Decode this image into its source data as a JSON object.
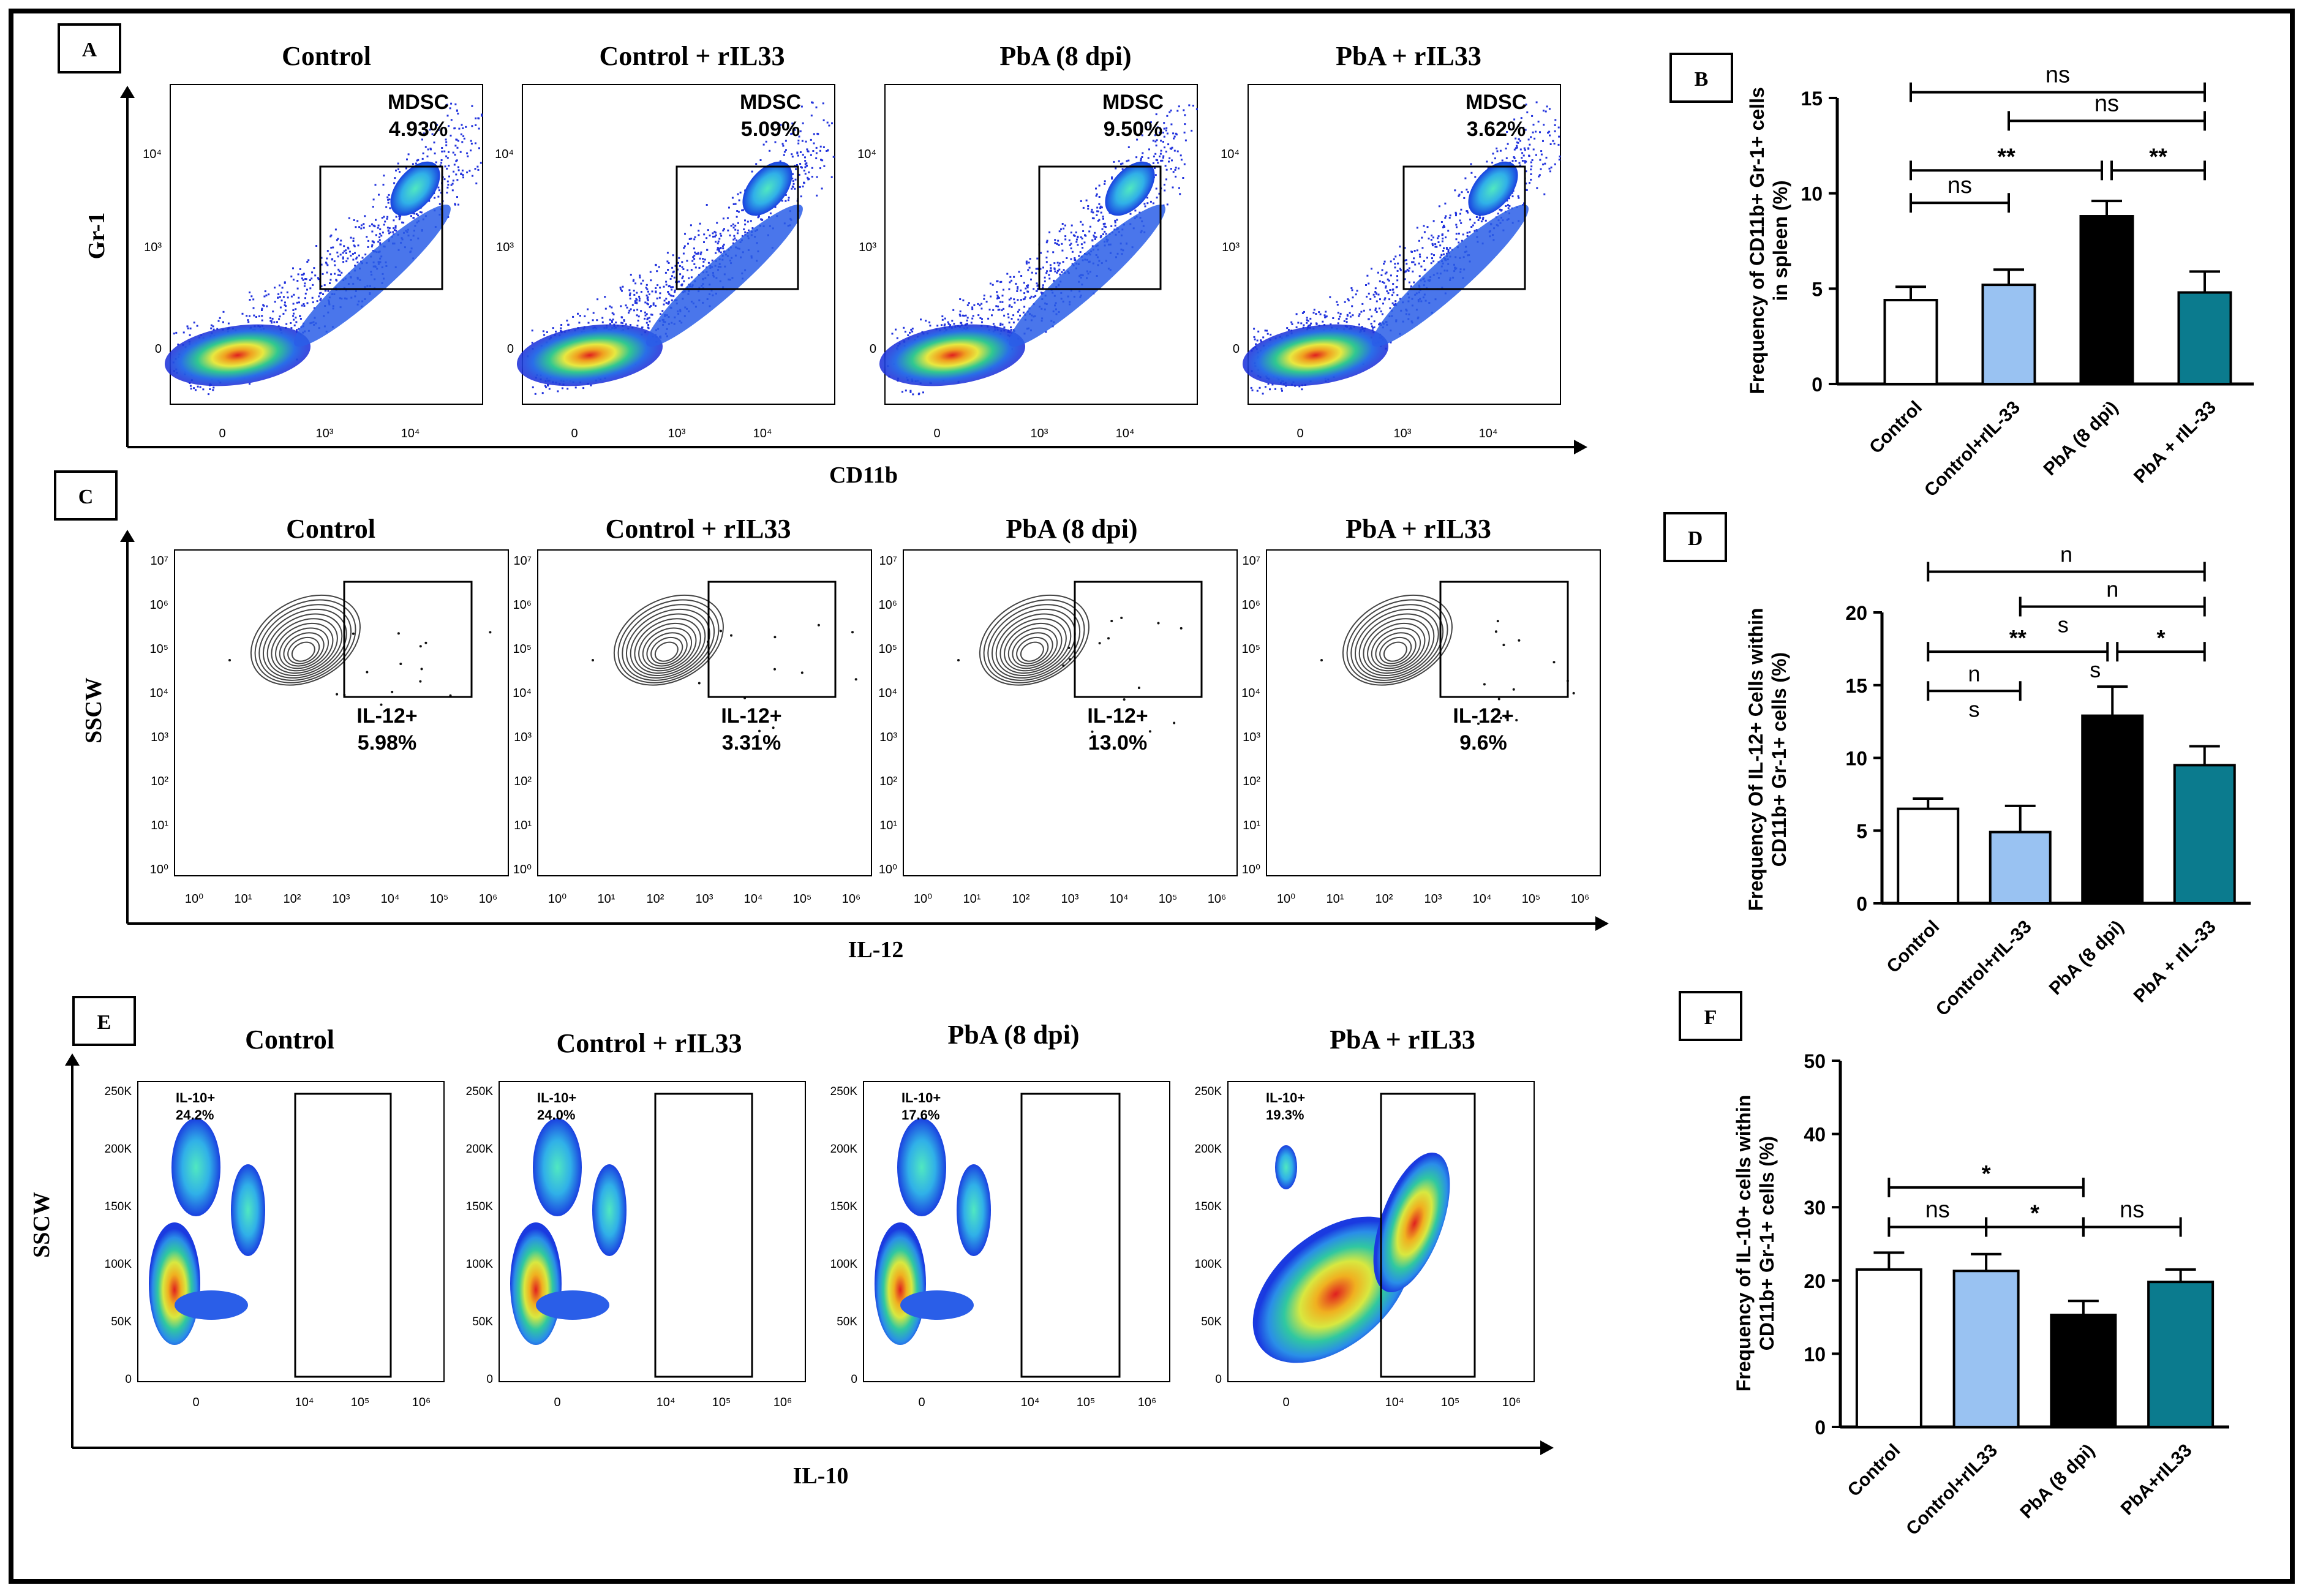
{
  "panels": {
    "A": {
      "letter": "A",
      "titles": [
        "Control",
        "Control + rIL33",
        "PbA (8 dpi)",
        "PbA + rIL33"
      ],
      "gate_label": "MDSC",
      "gate_values": [
        "4.93%",
        "5.09%",
        "9.50%",
        "3.62%"
      ],
      "y_axis_label": "Gr-1",
      "x_axis_label": "CD11b",
      "y_ticks": [
        "10⁴",
        "10³",
        "0"
      ],
      "x_ticks": [
        "0",
        "10³",
        "10⁴"
      ]
    },
    "C": {
      "letter": "C",
      "titles": [
        "Control",
        "Control + rIL33",
        "PbA (8 dpi)",
        "PbA + rIL33"
      ],
      "gate_label": "IL-12+",
      "gate_values": [
        "5.98%",
        "3.31%",
        "13.0%",
        "9.6%"
      ],
      "y_axis_label": "SSCW",
      "x_axis_label": "IL-12",
      "y_ticks": [
        "10⁷",
        "10⁶",
        "10⁵",
        "10⁴",
        "10³",
        "10²",
        "10¹",
        "10⁰"
      ],
      "x_ticks": [
        "10⁰",
        "10¹",
        "10²",
        "10³",
        "10⁴",
        "10⁵",
        "10⁶"
      ]
    },
    "E": {
      "letter": "E",
      "titles": [
        "Control",
        "Control + rIL33",
        "PbA (8 dpi)",
        "PbA + rIL33"
      ],
      "gate_label": "IL-10+",
      "gate_values": [
        "24.2%",
        "24.0%",
        "17.6%",
        "19.3%"
      ],
      "y_axis_label": "SSCW",
      "x_axis_label": "IL-10",
      "y_ticks": [
        "250K",
        "200K",
        "150K",
        "100K",
        "50K",
        "0"
      ],
      "x_ticks": [
        "0",
        "10⁴",
        "10⁵",
        "10⁶"
      ]
    }
  },
  "chart_data": [
    {
      "id": "B",
      "letter": "B",
      "type": "bar",
      "categories": [
        "Control",
        "Control+rIL-33",
        "PbA (8 dpi)",
        "PbA + rIL-33"
      ],
      "values": [
        4.4,
        5.2,
        8.8,
        4.8
      ],
      "errors": [
        0.7,
        0.8,
        0.8,
        1.1
      ],
      "colors": [
        "#ffffff",
        "#99c2f2",
        "#000000",
        "#0b7b8e"
      ],
      "ylabel": "Frequency of CD11b+ Gr-1+ cells in spleen (%)",
      "ylim": [
        0,
        15
      ],
      "yticks": [
        0,
        5,
        10,
        15
      ],
      "significance": [
        {
          "from": 0,
          "to": 3,
          "label": "ns"
        },
        {
          "from": 1,
          "to": 3,
          "label": "ns"
        },
        {
          "from": 0,
          "to": 2,
          "label": "**"
        },
        {
          "from": 2,
          "to": 3,
          "label": "**"
        },
        {
          "from": 0,
          "to": 1,
          "label": "ns"
        }
      ]
    },
    {
      "id": "D",
      "letter": "D",
      "type": "bar",
      "categories": [
        "Control",
        "Control+rIL-33",
        "PbA (8 dpi)",
        "PbA + rIL-33"
      ],
      "values": [
        6.5,
        4.9,
        12.9,
        9.5
      ],
      "errors": [
        0.7,
        1.8,
        2.0,
        1.3
      ],
      "colors": [
        "#ffffff",
        "#99c2f2",
        "#000000",
        "#0b7b8e"
      ],
      "ylabel": "Frequency Of IL-12+ Cells  within CD11b+ Gr-1+ cells (%)",
      "ylim": [
        0,
        20
      ],
      "yticks": [
        0,
        5,
        10,
        15,
        20
      ],
      "significance": [
        {
          "from": 0,
          "to": 3,
          "label": "n"
        },
        {
          "from": 1,
          "to": 3,
          "label": "n",
          "sub": "s",
          "pos": "left"
        },
        {
          "from": 0,
          "to": 2,
          "label": "**",
          "sub": "s",
          "pos": "end"
        },
        {
          "from": 2,
          "to": 3,
          "label": "*"
        },
        {
          "from": 0,
          "to": 1,
          "label": "n",
          "sub": "s"
        }
      ]
    },
    {
      "id": "F",
      "letter": "F",
      "type": "bar",
      "categories": [
        "Control",
        "Control+rIL33",
        "PbA (8 dpi)",
        "PbA+rIL33"
      ],
      "values": [
        21.5,
        21.3,
        15.3,
        19.8
      ],
      "errors": [
        2.3,
        2.3,
        1.9,
        1.7
      ],
      "colors": [
        "#ffffff",
        "#99c2f2",
        "#000000",
        "#0b7b8e"
      ],
      "ylabel": "Frequency  of IL-10+ cells within CD11b+ Gr-1+ cells (%)",
      "ylim": [
        0,
        50
      ],
      "yticks": [
        0,
        10,
        20,
        30,
        40,
        50
      ],
      "significance": [
        {
          "from": 0,
          "to": 2,
          "label": "*"
        },
        {
          "from": 0,
          "to": 1,
          "label": "ns"
        },
        {
          "from": 1,
          "to": 2,
          "label": "*"
        },
        {
          "from": 2,
          "to": 3,
          "label": "ns"
        }
      ]
    }
  ]
}
